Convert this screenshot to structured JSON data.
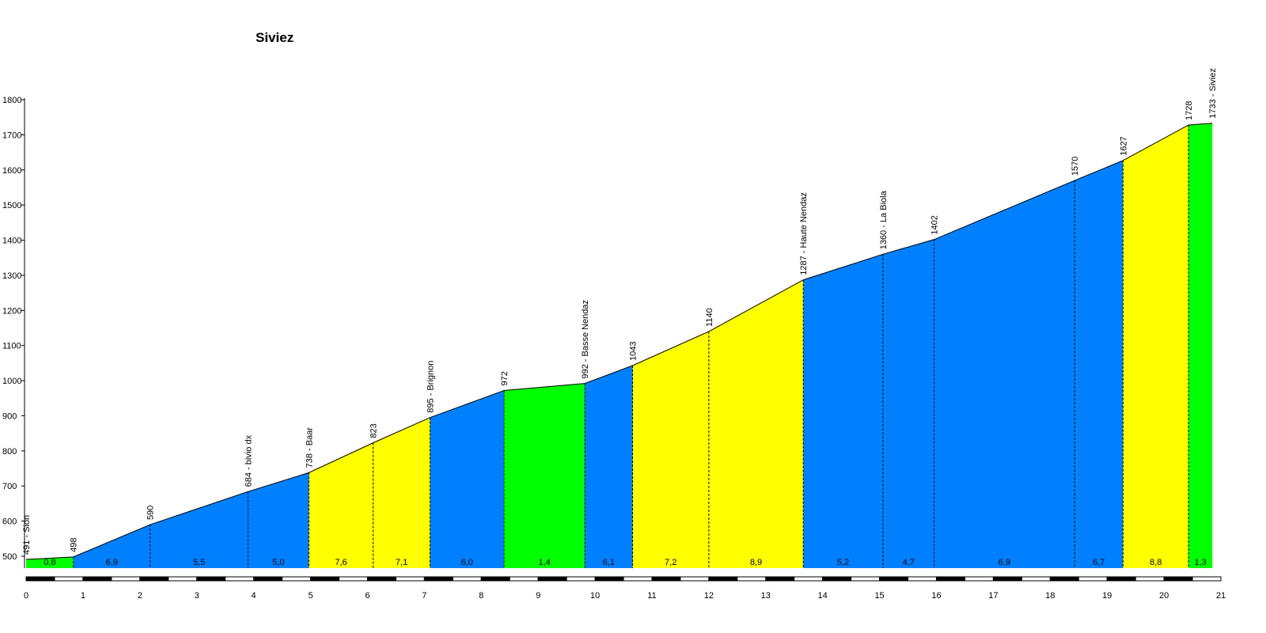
{
  "chart_data": {
    "type": "area",
    "title": "Siviez",
    "xlabel": "",
    "ylabel": "",
    "xlim": [
      0,
      21
    ],
    "ylim": [
      470,
      1800
    ],
    "x_ticks": [
      0,
      1,
      2,
      3,
      4,
      5,
      6,
      7,
      8,
      9,
      10,
      11,
      12,
      13,
      14,
      15,
      16,
      17,
      18,
      19,
      20,
      21
    ],
    "y_ticks": [
      500,
      600,
      700,
      800,
      900,
      1000,
      1100,
      1200,
      1300,
      1400,
      1500,
      1600,
      1700,
      1800
    ],
    "points": [
      {
        "x": 0.0,
        "y": 491,
        "label": "491 - Sion"
      },
      {
        "x": 0.83,
        "y": 498,
        "label": "498"
      },
      {
        "x": 2.18,
        "y": 590,
        "label": "590"
      },
      {
        "x": 3.9,
        "y": 684,
        "label": "684 - bivio dx"
      },
      {
        "x": 4.97,
        "y": 738,
        "label": "738 - Baar"
      },
      {
        "x": 6.1,
        "y": 823,
        "label": "823"
      },
      {
        "x": 7.1,
        "y": 895,
        "label": "895 - Brignon"
      },
      {
        "x": 8.4,
        "y": 972,
        "label": "972"
      },
      {
        "x": 9.82,
        "y": 992,
        "label": "992 - Basse Nendaz"
      },
      {
        "x": 10.66,
        "y": 1043,
        "label": "1043"
      },
      {
        "x": 12.0,
        "y": 1140,
        "label": "1140"
      },
      {
        "x": 13.66,
        "y": 1287,
        "label": "1287 - Haute Nendaz"
      },
      {
        "x": 15.06,
        "y": 1360,
        "label": "1360 - La Biola"
      },
      {
        "x": 15.96,
        "y": 1402,
        "label": "1402"
      },
      {
        "x": 18.43,
        "y": 1570,
        "label": "1570"
      },
      {
        "x": 19.28,
        "y": 1627,
        "label": "1627"
      },
      {
        "x": 20.43,
        "y": 1728,
        "label": "1728"
      },
      {
        "x": 20.85,
        "y": 1733,
        "label": "1733 - Siviez"
      }
    ],
    "segments": [
      {
        "gradient": "0,8",
        "color": "#00ff00"
      },
      {
        "gradient": "6,9",
        "color": "#0080ff"
      },
      {
        "gradient": "5,5",
        "color": "#0080ff"
      },
      {
        "gradient": "5,0",
        "color": "#0080ff"
      },
      {
        "gradient": "7,6",
        "color": "#ffff00"
      },
      {
        "gradient": "7,1",
        "color": "#ffff00"
      },
      {
        "gradient": "6,0",
        "color": "#0080ff"
      },
      {
        "gradient": "1,4",
        "color": "#00ff00"
      },
      {
        "gradient": "6,1",
        "color": "#0080ff"
      },
      {
        "gradient": "7,2",
        "color": "#ffff00"
      },
      {
        "gradient": "8,9",
        "color": "#ffff00"
      },
      {
        "gradient": "5,2",
        "color": "#0080ff"
      },
      {
        "gradient": "4,7",
        "color": "#0080ff"
      },
      {
        "gradient": "6,9",
        "color": "#0080ff"
      },
      {
        "gradient": "6,7",
        "color": "#0080ff"
      },
      {
        "gradient": "8,8",
        "color": "#ffff00"
      },
      {
        "gradient": "1,3",
        "color": "#00ff00"
      }
    ],
    "grid": false,
    "legend": "none"
  }
}
